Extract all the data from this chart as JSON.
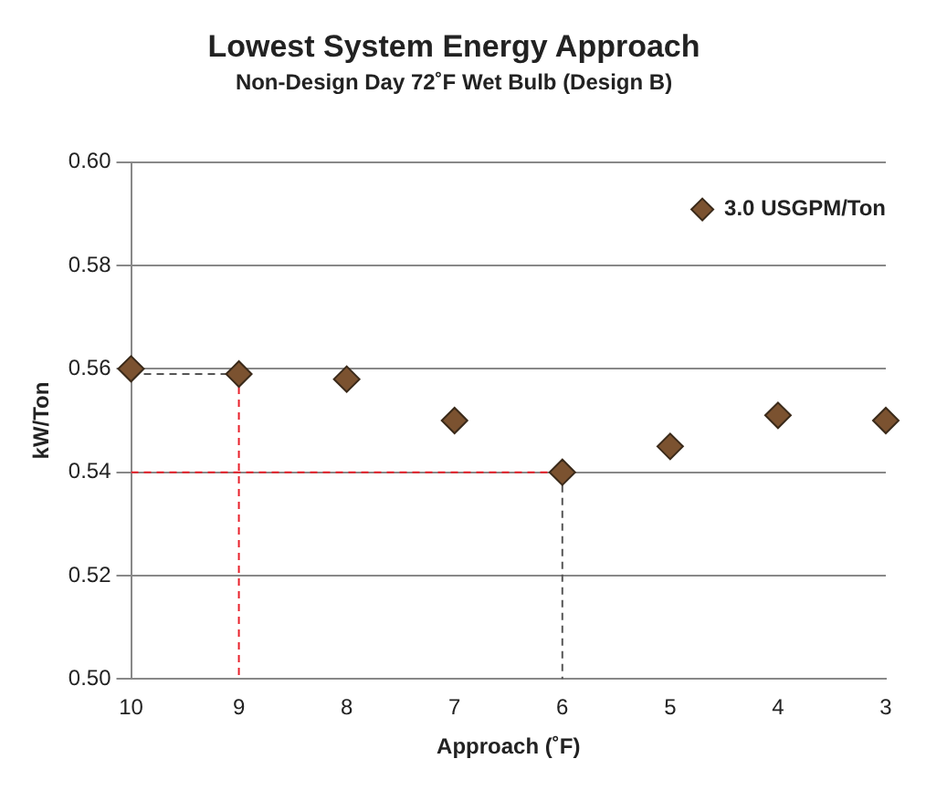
{
  "chart_data": {
    "type": "scatter",
    "title": "Lowest System Energy Approach",
    "subtitle": "Non-Design Day 72˚F Wet Bulb (Design B)",
    "xlabel": "Approach (˚F)",
    "ylabel": "kW/Ton",
    "x": [
      10,
      9,
      8,
      7,
      6,
      5,
      4,
      3
    ],
    "series": [
      {
        "name": "3.0 USGPM/Ton",
        "color": "#7b5230",
        "values": [
          0.56,
          0.559,
          0.558,
          0.55,
          0.54,
          0.545,
          0.551,
          0.55
        ]
      },
      {
        "type": "line",
        "marker": "none",
        "color": "#555555",
        "line_style": "dashed",
        "x": [
          10,
          9
        ],
        "values": [
          0.559,
          0.559
        ]
      },
      {
        "type": "line",
        "marker": "none",
        "color": "#e8202a",
        "line_style": "dashed",
        "x": [
          9,
          9
        ],
        "values": [
          0.559,
          0.5
        ]
      },
      {
        "type": "line",
        "marker": "none",
        "color": "#e8202a",
        "line_style": "dashed",
        "x": [
          10,
          6
        ],
        "values": [
          0.54,
          0.54
        ]
      },
      {
        "type": "line",
        "marker": "none",
        "color": "#555555",
        "line_style": "dashed",
        "x": [
          6,
          6
        ],
        "values": [
          0.54,
          0.5
        ]
      }
    ],
    "xlim": [
      10,
      3
    ],
    "xticks": [
      10,
      9,
      8,
      7,
      6,
      5,
      4,
      3
    ],
    "ylim": [
      0.5,
      0.6
    ],
    "yticks": [
      {
        "value": 0.5,
        "label": "0.50"
      },
      0.52,
      0.54,
      0.56,
      0.58,
      {
        "value": 0.6,
        "label": "0.60"
      }
    ],
    "grid": "y",
    "legend": "top right",
    "marker": "diamond"
  }
}
